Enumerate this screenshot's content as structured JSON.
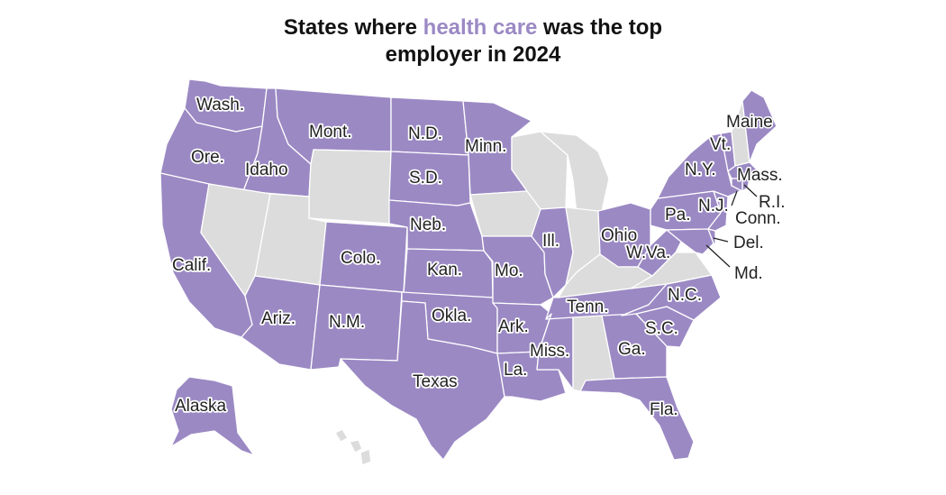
{
  "title": {
    "prefix": "States where ",
    "highlight": "health care",
    "suffix_line1": " was the top",
    "line2": "employer in 2024"
  },
  "colors": {
    "health_care": "#9b89c4",
    "other": "#dcdcdc",
    "border": "#ffffff",
    "text": "#222222"
  },
  "map": {
    "labels": {
      "wa": "Wash.",
      "or": "Ore.",
      "id": "Idaho",
      "mt": "Mont.",
      "nd": "N.D.",
      "sd": "S.D.",
      "mn": "Minn.",
      "ne": "Neb.",
      "co": "Colo.",
      "ks": "Kan.",
      "ca": "Calif.",
      "az": "Ariz.",
      "nm": "N.M.",
      "ok": "Okla.",
      "tx": "Texas",
      "mo": "Mo.",
      "ar": "Ark.",
      "la": "La.",
      "ms": "Miss.",
      "il": "Ill.",
      "oh": "Ohio",
      "wv": "W.Va.",
      "pa": "Pa.",
      "ny": "N.Y.",
      "vt": "Vt.",
      "me": "Maine",
      "ma": "Mass.",
      "ri": "R.I.",
      "ct": "Conn.",
      "nj": "N.J.",
      "de": "Del.",
      "md": "Md.",
      "tn": "Tenn.",
      "nc": "N.C.",
      "sc": "S.C.",
      "ga": "Ga.",
      "fl": "Fla.",
      "ak": "Alaska"
    }
  }
}
